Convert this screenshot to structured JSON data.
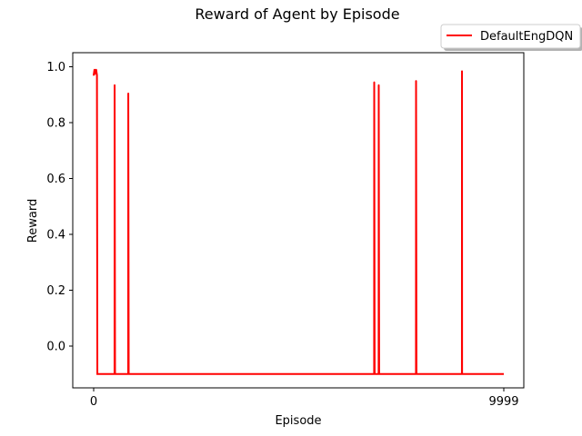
{
  "chart_data": {
    "type": "line",
    "title": "Reward of Agent by Episode",
    "xlabel": "Episode",
    "ylabel": "Reward",
    "x_ticks": [
      0,
      9999
    ],
    "y_ticks": [
      "0.0",
      "0.2",
      "0.4",
      "0.6",
      "0.8",
      "1.0"
    ],
    "legend_position": "upper-right-outside",
    "grid": false,
    "series": [
      {
        "name": "DefaultEngDQN",
        "color": "#ff0000",
        "baseline": -0.1,
        "x_range": [
          0,
          9999
        ],
        "spikes": [
          {
            "x": 0,
            "y": 0.97
          },
          {
            "x": 20,
            "y": 0.99
          },
          {
            "x": 40,
            "y": 0.98
          },
          {
            "x": 60,
            "y": 0.99
          },
          {
            "x": 80,
            "y": 0.97
          },
          {
            "x": 511,
            "y": 0.935
          },
          {
            "x": 844,
            "y": 0.905
          },
          {
            "x": 6840,
            "y": 0.945
          },
          {
            "x": 6950,
            "y": 0.935
          },
          {
            "x": 7860,
            "y": 0.95
          },
          {
            "x": 8980,
            "y": 0.985
          }
        ]
      }
    ]
  }
}
